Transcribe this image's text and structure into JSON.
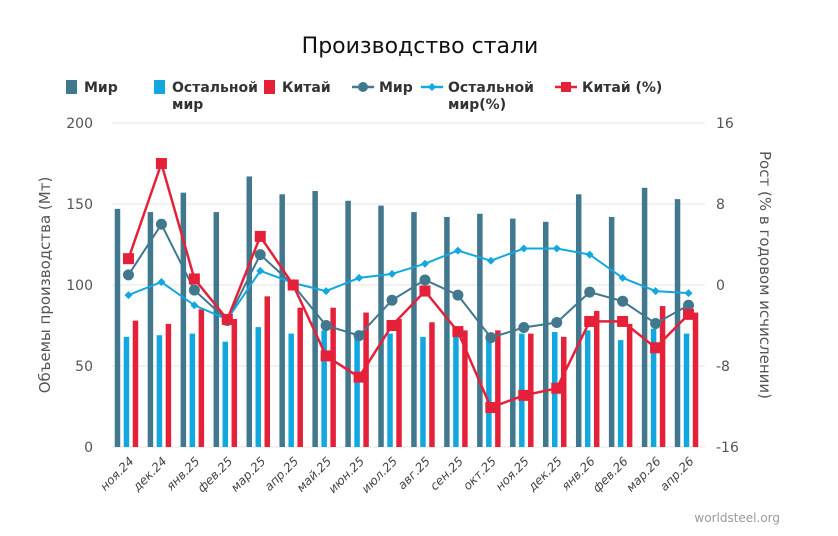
{
  "chart_data": {
    "type": "bar+line",
    "title": "Производство стали",
    "categories": [
      "ноя.24",
      "дек.24",
      "янв.25",
      "фев.25",
      "мар.25",
      "апр.25",
      "май.25",
      "июн.25",
      "июл.25",
      "авг.25",
      "сен.25",
      "окт.25",
      "ноя.25",
      "дек.25",
      "янв.26",
      "фев.26",
      "мар.26",
      "апр.26"
    ],
    "ylabel_left": "Объемы производства (Мт)",
    "ylabel_right": "Рост (% в годовом исчислении)",
    "ylim_left": [
      0,
      200
    ],
    "yticks_left": [
      "0",
      "50",
      "100",
      "150",
      "200"
    ],
    "ylim_right": [
      -16,
      16
    ],
    "yticks_right": [
      "-16",
      "-8",
      "0",
      "8",
      "16"
    ],
    "grid": true,
    "legend_position": "top",
    "bar_series": [
      {
        "key": "world",
        "name": "Мир",
        "color": "#41788e",
        "values": [
          147,
          145,
          157,
          145,
          167,
          156,
          158,
          152,
          149,
          145,
          142,
          144,
          141,
          139,
          156,
          142,
          160,
          153
        ]
      },
      {
        "key": "rest",
        "name": "Остальной мир",
        "color": "#13a7e0",
        "values": [
          68,
          69,
          70,
          65,
          74,
          70,
          72,
          68,
          70,
          68,
          71,
          70,
          70,
          71,
          72,
          66,
          73,
          70
        ]
      },
      {
        "key": "china",
        "name": "Китай",
        "color": "#e5213a",
        "values": [
          78,
          76,
          85,
          79,
          93,
          86,
          86,
          83,
          79,
          77,
          72,
          72,
          70,
          68,
          84,
          76,
          87,
          83
        ]
      }
    ],
    "line_series": [
      {
        "key": "world_pct",
        "name": "Мир",
        "color": "#41788e",
        "marker": "circle",
        "values": [
          1,
          6,
          -0.5,
          -3.5,
          3,
          0,
          -4,
          -5,
          -1.5,
          0.5,
          -1,
          -5.2,
          -4.2,
          -3.7,
          -0.7,
          -1.6,
          -3.8,
          -2
        ]
      },
      {
        "key": "rest_pct",
        "name": "Остальной мир(%)",
        "color": "#13a7e0",
        "marker": "diamond",
        "values": [
          -1,
          0.3,
          -2,
          -3.4,
          1.4,
          0.2,
          -0.6,
          0.7,
          1.1,
          2.1,
          3.4,
          2.4,
          3.6,
          3.6,
          3,
          0.7,
          -0.6,
          -0.8
        ]
      },
      {
        "key": "china_pct",
        "name": "Китай (%)",
        "color": "#e5213a",
        "marker": "square",
        "values": [
          2.6,
          12,
          0.6,
          -3.4,
          4.8,
          0,
          -7,
          -9.1,
          -4,
          -0.6,
          -4.6,
          -12.1,
          -10.9,
          -10.2,
          -3.6,
          -3.6,
          -6.2,
          -2.9
        ]
      }
    ],
    "legend_items": [
      {
        "label": "Мир",
        "color": "#41788e",
        "kind": "bar"
      },
      {
        "label": "Остальной\nмир",
        "color": "#13a7e0",
        "kind": "bar"
      },
      {
        "label": "Китай",
        "color": "#e5213a",
        "kind": "bar"
      },
      {
        "label": "Мир",
        "color": "#41788e",
        "kind": "line-circle"
      },
      {
        "label": "Остальной\nмир(%)",
        "color": "#13a7e0",
        "kind": "line-diamond"
      },
      {
        "label": "Китай (%)",
        "color": "#e5213a",
        "kind": "line-square"
      }
    ],
    "source": "worldsteel.org"
  }
}
